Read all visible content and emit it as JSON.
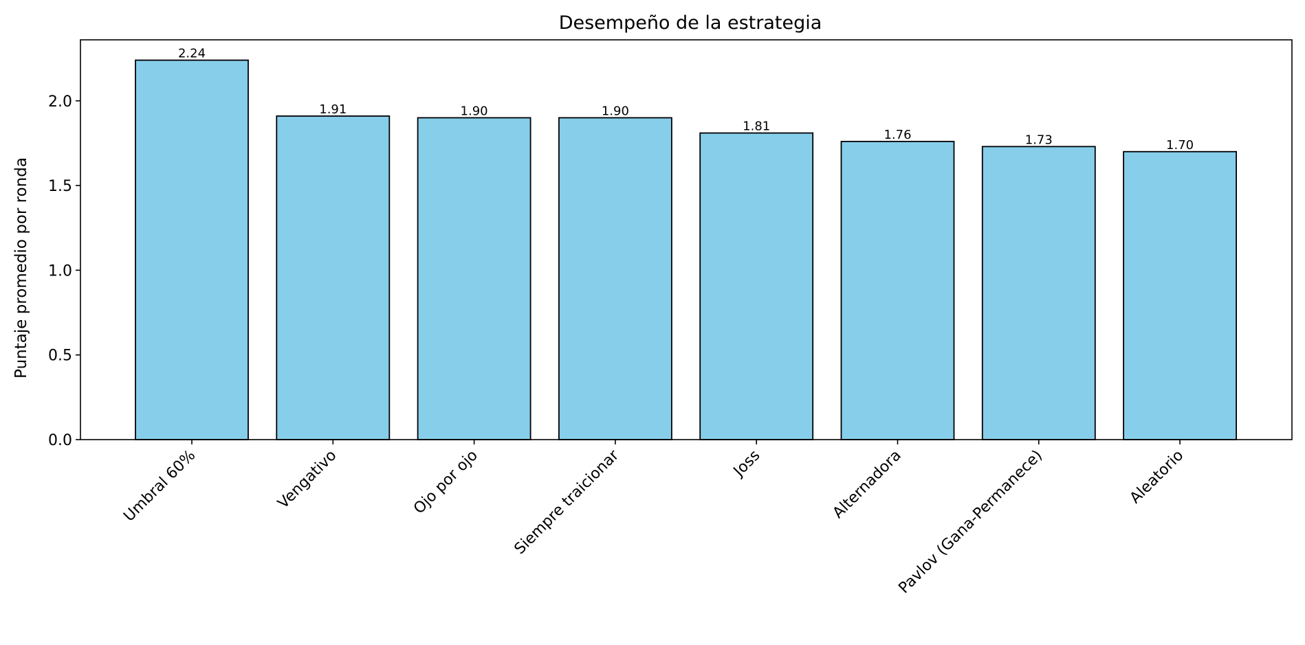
{
  "chart_data": {
    "type": "bar",
    "title": "Desempeño de la estrategia",
    "xlabel": "",
    "ylabel": "Puntaje promedio por ronda",
    "categories": [
      "Umbral 60%",
      "Vengativo",
      "Ojo por ojo",
      "Siempre traicionar",
      "Joss",
      "Alternadora",
      "Pavlov (Gana-Permanece)",
      "Aleatorio"
    ],
    "values": [
      2.24,
      1.91,
      1.9,
      1.9,
      1.81,
      1.76,
      1.73,
      1.7
    ],
    "value_labels": [
      "2.24",
      "1.91",
      "1.90",
      "1.90",
      "1.81",
      "1.76",
      "1.73",
      "1.70"
    ],
    "ylim": [
      0,
      2.36
    ],
    "yticks": [
      0.0,
      0.5,
      1.0,
      1.5,
      2.0
    ],
    "ytick_labels": [
      "0.0",
      "0.5",
      "1.0",
      "1.5",
      "2.0"
    ],
    "grid": false,
    "bar_color": "#87CEEB",
    "bar_edge_color": "#000000"
  }
}
